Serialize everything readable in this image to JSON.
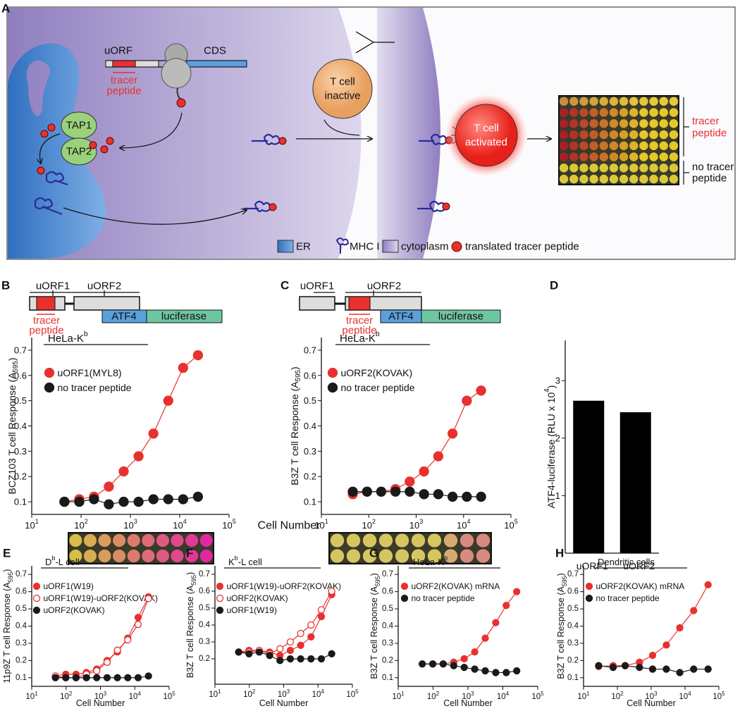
{
  "panel_a": {
    "label": "A",
    "uorf": "uORF",
    "cds": "CDS",
    "tracer": [
      "tracer",
      "peptide"
    ],
    "tap1": "TAP1",
    "tap2": "TAP2",
    "t_inactive": [
      "T cell",
      "inactive"
    ],
    "t_activated": [
      "T cell",
      "activated"
    ],
    "plate_tracer": [
      "tracer",
      "peptide"
    ],
    "plate_no_tracer": [
      "no tracer",
      "peptide"
    ],
    "legend": [
      "ER",
      "MHC I",
      "cytoplasm",
      "translated tracer peptide"
    ]
  },
  "diagram_b": {
    "uorf1": "uORF1",
    "uorf2": "uORF2",
    "atf4": "ATF4",
    "luciferase": "luciferase",
    "tracer": [
      "tracer",
      "peptide"
    ]
  },
  "diagram_c": {
    "uorf1": "uORF1",
    "uorf2": "uORF2",
    "atf4": "ATF4",
    "luciferase": "luciferase",
    "tracer": [
      "tracer",
      "peptide"
    ]
  },
  "shared_xlabel": "Cell Number",
  "chart_data": [
    {
      "panel": "B",
      "type": "line",
      "annotation": {
        "text": "HeLa-K",
        "sup": "b"
      },
      "ylabel": {
        "text": "BCZ103 T cell Response (A",
        "sub": "595",
        "after": ")"
      },
      "x": [
        46,
        92,
        183,
        366,
        732,
        1465,
        2930,
        5860,
        11720,
        23437
      ],
      "xscale": "log",
      "xlim": [
        10,
        100000
      ],
      "xticks": [
        {
          "value": 10,
          "label": "10",
          "sup": "1"
        },
        {
          "value": 100,
          "label": "10",
          "sup": "2"
        },
        {
          "value": 1000,
          "label": "10",
          "sup": "3"
        },
        {
          "value": 10000,
          "label": "10",
          "sup": "4"
        },
        {
          "value": 100000,
          "label": "10",
          "sup": "5"
        }
      ],
      "ylim": [
        0.05,
        0.75
      ],
      "yticks": [
        0.1,
        0.2,
        0.3,
        0.4,
        0.5,
        0.6,
        0.7
      ],
      "series": [
        {
          "name": "uORF1(MYL8)",
          "color": "#e8312f",
          "marker": "filled",
          "values": [
            0.1,
            0.11,
            0.12,
            0.16,
            0.22,
            0.28,
            0.37,
            0.5,
            0.63,
            0.68
          ]
        },
        {
          "name": "no tracer peptide",
          "color": "#1a1a1a",
          "marker": "filled",
          "values": [
            0.1,
            0.1,
            0.11,
            0.09,
            0.1,
            0.1,
            0.11,
            0.11,
            0.11,
            0.12
          ]
        }
      ]
    },
    {
      "panel": "C",
      "type": "line",
      "annotation": {
        "text": "HeLa-K",
        "sup": "b"
      },
      "ylabel": {
        "text": "B3Z T cell Response (A",
        "sub": "595",
        "after": ")"
      },
      "x": [
        46,
        92,
        183,
        366,
        732,
        1465,
        2930,
        5860,
        11720,
        23437
      ],
      "xscale": "log",
      "xlim": [
        10,
        100000
      ],
      "xticks": [
        {
          "value": 10,
          "label": "10",
          "sup": "1"
        },
        {
          "value": 100,
          "label": "10",
          "sup": "2"
        },
        {
          "value": 1000,
          "label": "10",
          "sup": "3"
        },
        {
          "value": 10000,
          "label": "10",
          "sup": "4"
        },
        {
          "value": 100000,
          "label": "10",
          "sup": "5"
        }
      ],
      "ylim": [
        0.05,
        0.75
      ],
      "yticks": [
        0.1,
        0.2,
        0.3,
        0.4,
        0.5,
        0.6,
        0.7
      ],
      "series": [
        {
          "name": "uORF2(KOVAK)",
          "color": "#e8312f",
          "marker": "filled",
          "values": [
            0.13,
            0.14,
            0.14,
            0.15,
            0.18,
            0.22,
            0.28,
            0.37,
            0.5,
            0.54
          ]
        },
        {
          "name": "no tracer peptide",
          "color": "#1a1a1a",
          "marker": "filled",
          "values": [
            0.14,
            0.14,
            0.14,
            0.14,
            0.14,
            0.13,
            0.13,
            0.12,
            0.12,
            0.12
          ]
        }
      ]
    },
    {
      "panel": "D",
      "type": "bar",
      "ylabel": {
        "text": "ATF4-luciferase (RLU x 10",
        "sup": "4",
        "after": ")"
      },
      "categories": [
        "uORF1",
        "uORF2"
      ],
      "values": [
        2.65,
        2.45
      ],
      "color": "#000000",
      "ylim": [
        0,
        3.7
      ],
      "yticks": [
        1,
        2,
        3
      ]
    },
    {
      "panel": "E",
      "type": "line",
      "annotation": {
        "text": "D",
        "sup": "b",
        "after": "-L cell"
      },
      "ylabel": {
        "text": "11p9Z T cell Response (A",
        "sub": "595",
        "after": ")"
      },
      "xlabel": "Cell Number",
      "x": [
        49,
        98,
        195,
        391,
        781,
        1563,
        3125,
        6250,
        12500,
        25000
      ],
      "xscale": "log",
      "xlim": [
        10,
        100000
      ],
      "xticks": [
        {
          "value": 10,
          "label": "10",
          "sup": "1"
        },
        {
          "value": 100,
          "label": "10",
          "sup": "2"
        },
        {
          "value": 1000,
          "label": "10",
          "sup": "3"
        },
        {
          "value": 10000,
          "label": "10",
          "sup": "4"
        },
        {
          "value": 100000,
          "label": "10",
          "sup": "5"
        }
      ],
      "ylim": [
        0.05,
        0.75
      ],
      "yticks": [
        0.1,
        0.2,
        0.3,
        0.4,
        0.5,
        0.6,
        0.7
      ],
      "series": [
        {
          "name": "uORF1(W19)",
          "color": "#e8312f",
          "marker": "filled",
          "values": [
            0.11,
            0.12,
            0.12,
            0.13,
            0.15,
            0.2,
            0.25,
            0.33,
            0.45,
            0.57
          ]
        },
        {
          "name": "uORF1(W19)-uORF2(KOVAK)",
          "color": "#e8312f",
          "marker": "open",
          "values": [
            0.11,
            0.1,
            0.1,
            0.12,
            0.14,
            0.19,
            0.26,
            0.32,
            0.41,
            0.56
          ]
        },
        {
          "name": "uORF2(KOVAK)",
          "color": "#1a1a1a",
          "marker": "filled",
          "values": [
            0.1,
            0.1,
            0.1,
            0.1,
            0.1,
            0.1,
            0.1,
            0.1,
            0.1,
            0.11
          ]
        }
      ]
    },
    {
      "panel": "F",
      "type": "line",
      "annotation": {
        "text": "K",
        "sup": "b",
        "after": "-L cell"
      },
      "ylabel": {
        "text": "B3Z T cell Response (A",
        "sub": "595",
        "after": ")"
      },
      "xlabel": "Cell Number",
      "x": [
        49,
        98,
        195,
        391,
        781,
        1563,
        3125,
        6250,
        12500,
        25000
      ],
      "xscale": "log",
      "xlim": [
        10,
        100000
      ],
      "xticks": [
        {
          "value": 10,
          "label": "10",
          "sup": "1"
        },
        {
          "value": 100,
          "label": "10",
          "sup": "2"
        },
        {
          "value": 1000,
          "label": "10",
          "sup": "3"
        },
        {
          "value": 10000,
          "label": "10",
          "sup": "4"
        },
        {
          "value": 100000,
          "label": "10",
          "sup": "5"
        }
      ],
      "ylim": [
        0.05,
        0.75
      ],
      "yticks": [
        0.2,
        0.3,
        0.4,
        0.5,
        0.6,
        0.7
      ],
      "series": [
        {
          "name": "uORF1(W19)-uORF2(KOVAK)",
          "color": "#e8312f",
          "marker": "filled",
          "values": [
            0.24,
            0.25,
            0.25,
            0.24,
            0.22,
            0.25,
            0.28,
            0.33,
            0.45,
            0.58
          ]
        },
        {
          "name": "uORF2(KOVAK)",
          "color": "#e8312f",
          "marker": "open",
          "values": [
            0.24,
            0.24,
            0.25,
            0.23,
            0.26,
            0.3,
            0.35,
            0.4,
            0.49,
            0.6
          ]
        },
        {
          "name": "uORF1(W19)",
          "color": "#1a1a1a",
          "marker": "filled",
          "values": [
            0.24,
            0.23,
            0.24,
            0.22,
            0.19,
            0.2,
            0.2,
            0.2,
            0.2,
            0.23
          ]
        }
      ]
    },
    {
      "panel": "G",
      "type": "line",
      "annotation": {
        "text": "HeLa-K",
        "sup": "b"
      },
      "ylabel": {
        "text": "B3Z T cell Response (A",
        "sub": "595",
        "after": ")"
      },
      "xlabel": "Cell Number",
      "x": [
        49,
        98,
        195,
        391,
        781,
        1563,
        3125,
        6250,
        12500,
        25000
      ],
      "xscale": "log",
      "xlim": [
        10,
        100000
      ],
      "xticks": [
        {
          "value": 10,
          "label": "10",
          "sup": "1"
        },
        {
          "value": 100,
          "label": "10",
          "sup": "2"
        },
        {
          "value": 1000,
          "label": "10",
          "sup": "3"
        },
        {
          "value": 10000,
          "label": "10",
          "sup": "4"
        },
        {
          "value": 100000,
          "label": "10",
          "sup": "5"
        }
      ],
      "ylim": [
        0.05,
        0.75
      ],
      "yticks": [
        0.1,
        0.2,
        0.3,
        0.4,
        0.5,
        0.6,
        0.7
      ],
      "series": [
        {
          "name": "uORF2(KOVAK) mRNA",
          "color": "#e8312f",
          "marker": "filled",
          "values": [
            0.18,
            0.18,
            0.18,
            0.19,
            0.21,
            0.25,
            0.33,
            0.42,
            0.52,
            0.6
          ]
        },
        {
          "name": "no tracer peptide",
          "color": "#1a1a1a",
          "marker": "filled",
          "values": [
            0.18,
            0.18,
            0.18,
            0.17,
            0.16,
            0.15,
            0.14,
            0.13,
            0.13,
            0.14
          ]
        }
      ]
    },
    {
      "panel": "H",
      "type": "line",
      "annotation": {
        "text": "Dendritic cells"
      },
      "ylabel": {
        "text": "B3Z T cell Response (A",
        "sub": "595",
        "after": ")"
      },
      "xlabel": "Cell Number",
      "x": [
        28,
        75,
        170,
        450,
        1100,
        2800,
        7000,
        18000,
        48000
      ],
      "xscale": "log",
      "xlim": [
        10,
        100000
      ],
      "xticks": [
        {
          "value": 10,
          "label": "10",
          "sup": "1"
        },
        {
          "value": 100,
          "label": "10",
          "sup": "2"
        },
        {
          "value": 1000,
          "label": "10",
          "sup": "3"
        },
        {
          "value": 10000,
          "label": "10",
          "sup": "4"
        },
        {
          "value": 100000,
          "label": "10",
          "sup": "5"
        }
      ],
      "ylim": [
        0.05,
        0.75
      ],
      "yticks": [
        0.1,
        0.2,
        0.3,
        0.4,
        0.5,
        0.6,
        0.7
      ],
      "series": [
        {
          "name": "uORF2(KOVAK) mRNA",
          "color": "#e8312f",
          "marker": "filled",
          "values": [
            0.165,
            0.17,
            0.17,
            0.19,
            0.23,
            0.29,
            0.39,
            0.49,
            0.64
          ]
        },
        {
          "name": "no tracer peptide",
          "color": "#1a1a1a",
          "marker": "filled",
          "values": [
            0.17,
            0.16,
            0.17,
            0.16,
            0.15,
            0.15,
            0.13,
            0.15,
            0.15
          ]
        }
      ]
    }
  ]
}
